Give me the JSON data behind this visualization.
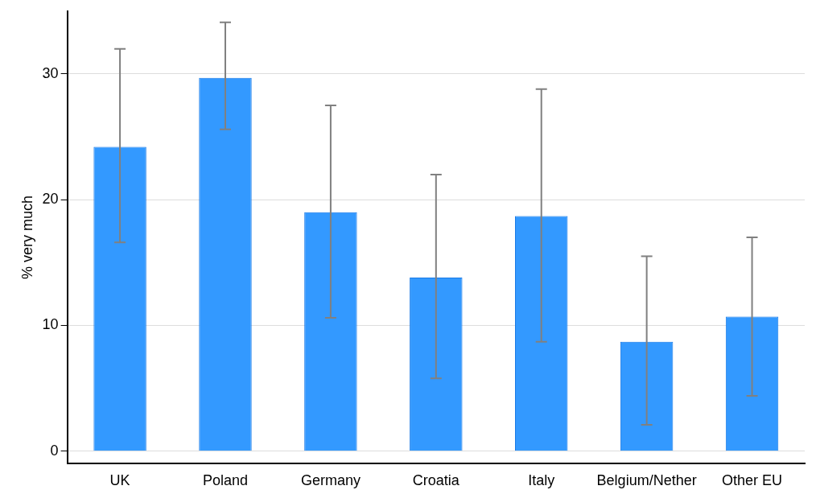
{
  "chart_data": {
    "type": "bar",
    "ylabel": "% very much",
    "categories": [
      "UK",
      "Poland",
      "Germany",
      "Croatia",
      "Italy",
      "Belgium/Nether",
      "Other EU"
    ],
    "values": [
      24.2,
      29.7,
      19.0,
      13.8,
      18.7,
      8.7,
      10.7
    ],
    "errors": [
      [
        16.6,
        32.0
      ],
      [
        25.6,
        34.1
      ],
      [
        10.6,
        27.5
      ],
      [
        5.8,
        22.0
      ],
      [
        8.7,
        28.8
      ],
      [
        2.1,
        15.5
      ],
      [
        4.4,
        17.0
      ]
    ],
    "color": "#3399ff",
    "ylim": [
      -1,
      35
    ],
    "yticks": [
      0,
      10,
      20,
      30
    ],
    "grid": "y",
    "legend": false
  }
}
